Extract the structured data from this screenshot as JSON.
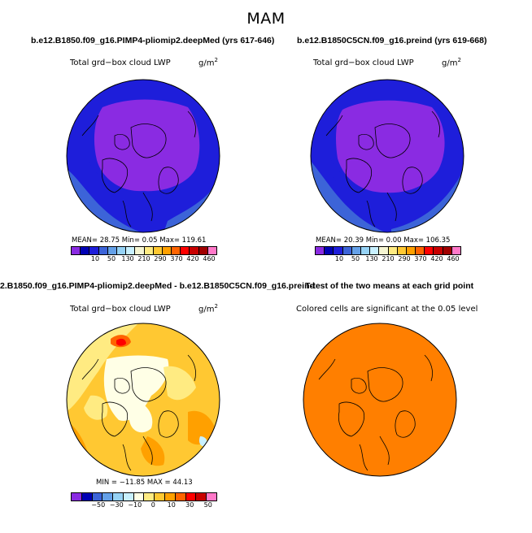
{
  "title": "MAM",
  "panels": {
    "top_left": {
      "title": "b.e12.B1850.f09_g16.PIMP4-pliomip2.deepMed (yrs 617-646)",
      "subtitle": "Total grd−box cloud LWP",
      "unit_base": "g/m",
      "unit_exp": "2",
      "stats": "MEAN=  28.75  Min=   0.05  Max= 119.61",
      "colorbar_labels": [
        "10",
        "50",
        "130",
        "210",
        "290",
        "370",
        "420",
        "460"
      ]
    },
    "top_right": {
      "title": "b.e12.B1850C5CN.f09_g16.preind (yrs 619-668)",
      "subtitle": "Total grd−box cloud LWP",
      "unit_base": "g/m",
      "unit_exp": "2",
      "stats": "MEAN=  20.39  Min=   0.00  Max= 106.35",
      "colorbar_labels": [
        "10",
        "50",
        "130",
        "210",
        "290",
        "370",
        "420",
        "460"
      ]
    },
    "bottom_left": {
      "title": "2.B1850.f09_g16.PIMP4-pliomip2.deepMed - b.e12.B1850C5CN.f09_g16.preind",
      "subtitle": "Total grd−box cloud LWP",
      "unit_base": "g/m",
      "unit_exp": "2",
      "stats": "MIN = −11.85  MAX =  44.13",
      "colorbar_labels": [
        "−50",
        "−30",
        "−10",
        "0",
        "10",
        "30",
        "50"
      ]
    },
    "bottom_right": {
      "title": "T-test of the two means at each grid point",
      "subtitle": "Colored cells are significant at the 0.05 level"
    }
  },
  "colors": {
    "abs_scale": [
      "#8a2be2",
      "#0000b4",
      "#1e1eda",
      "#3c64d8",
      "#64a0e8",
      "#96d2f5",
      "#c8f0ff",
      "#f5f5d2",
      "#ffeb82",
      "#ffc832",
      "#ffa000",
      "#ff6400",
      "#ff0000",
      "#c80000",
      "#a00000",
      "#ff78c8"
    ],
    "diff_scale": [
      "#8a2be2",
      "#0000b4",
      "#3c64d8",
      "#64a0e8",
      "#96d2f5",
      "#c8f0ff",
      "#ffffe6",
      "#ffeb82",
      "#ffc832",
      "#ffa000",
      "#ff6400",
      "#ff0000",
      "#c80000",
      "#ff78c8"
    ],
    "ttest_fill": "#ff7f00"
  }
}
